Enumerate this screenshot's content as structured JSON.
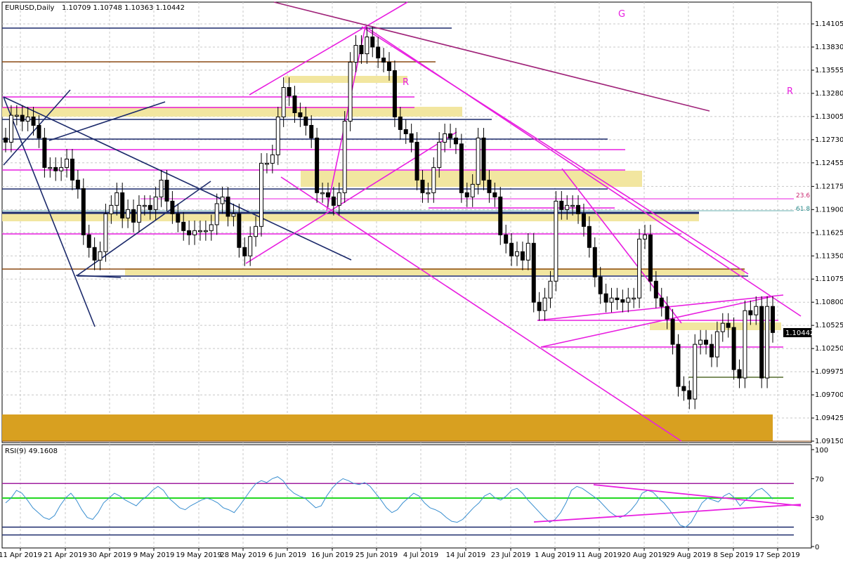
{
  "header": {
    "symbol": "EURUSD,Daily",
    "ohlc": "1.10709 1.10748 1.10363 1.10442"
  },
  "rsi_header": "RSI(9) 49.1608",
  "colors": {
    "grid": "#c8c8c8",
    "candle": "#000000",
    "magenta": "#e81ee0",
    "navy": "#1c2a6b",
    "brown": "#8b4a13",
    "purple_line": "#a0247a",
    "yellow_zone": "#f2e6a0",
    "gold_zone": "#d8a020",
    "rsi_line": "#3a8fd0",
    "rsi_green": "#22d822",
    "rsi_purple": "#a020a0"
  },
  "annotations": {
    "g": "G",
    "r1": "R",
    "r2": "R",
    "fib236": "23.6",
    "fib618": "61.8"
  },
  "chart_data": [
    {
      "type": "candlestick",
      "title": "EURUSD,Daily",
      "ylim": [
        1.0915,
        1.1425
      ],
      "y_ticks": [
        "1.14105",
        "1.13830",
        "1.13555",
        "1.13280",
        "1.13005",
        "1.12730",
        "1.12455",
        "1.12175",
        "1.11900",
        "1.11625",
        "1.11350",
        "1.11075",
        "1.10800",
        "1.10525",
        "1.10250",
        "1.09975",
        "1.09700",
        "1.09425",
        "1.09150"
      ],
      "x_ticks": [
        "11 Apr 2019",
        "21 Apr 2019",
        "30 Apr 2019",
        "9 May 2019",
        "19 May 2019",
        "28 May 2019",
        "6 Jun 2019",
        "16 Jun 2019",
        "25 Jun 2019",
        "4 Jul 2019",
        "14 Jul 2019",
        "23 Jul 2019",
        "1 Aug 2019",
        "11 Aug 2019",
        "20 Aug 2019",
        "29 Aug 2019",
        "8 Sep 2019",
        "17 Sep 2019"
      ],
      "current_price": "1.10442",
      "close_series": [
        1.127,
        1.1302,
        1.1302,
        1.1295,
        1.13,
        1.129,
        1.1275,
        1.124,
        1.124,
        1.1236,
        1.124,
        1.125,
        1.1225,
        1.1215,
        1.116,
        1.1145,
        1.113,
        1.114,
        1.1185,
        1.1195,
        1.121,
        1.118,
        1.119,
        1.1175,
        1.1195,
        1.1195,
        1.119,
        1.1205,
        1.1225,
        1.12,
        1.1185,
        1.1175,
        1.1165,
        1.116,
        1.1165,
        1.1165,
        1.1165,
        1.1172,
        1.1197,
        1.1205,
        1.1182,
        1.1185,
        1.1145,
        1.1135,
        1.1158,
        1.117,
        1.1245,
        1.1245,
        1.1255,
        1.13,
        1.1335,
        1.1325,
        1.1305,
        1.13,
        1.129,
        1.1275,
        1.121,
        1.121,
        1.1205,
        1.1195,
        1.121,
        1.1295,
        1.1365,
        1.1385,
        1.1375,
        1.1395,
        1.1383,
        1.137,
        1.1365,
        1.1355,
        1.13,
        1.1285,
        1.128,
        1.127,
        1.1225,
        1.121,
        1.121,
        1.124,
        1.127,
        1.128,
        1.1275,
        1.1268,
        1.121,
        1.1205,
        1.122,
        1.1275,
        1.1225,
        1.121,
        1.1205,
        1.116,
        1.115,
        1.1135,
        1.114,
        1.113,
        1.115,
        1.108,
        1.107,
        1.1085,
        1.1105,
        1.12,
        1.119,
        1.1195,
        1.1195,
        1.1185,
        1.117,
        1.1145,
        1.111,
        1.109,
        1.108,
        1.1085,
        1.1083,
        1.108,
        1.1085,
        1.1085,
        1.1155,
        1.116,
        1.1105,
        1.1085,
        1.1075,
        1.106,
        1.103,
        1.098,
        1.0975,
        1.0965,
        1.103,
        1.1035,
        1.103,
        1.1015,
        1.1045,
        1.1055,
        1.105,
        1.1,
        1.099,
        1.107,
        1.1065,
        1.1075,
        1.099,
        1.1075,
        1.1044
      ]
    },
    {
      "type": "line",
      "title": "RSI(9) 49.1608",
      "ylim": [
        0,
        100
      ],
      "y_ticks": [
        "100",
        "70",
        "30",
        "0"
      ],
      "levels": [
        65,
        50,
        20,
        12
      ],
      "series": [
        {
          "values": [
            45,
            50,
            58,
            55,
            48,
            40,
            35,
            30,
            28,
            32,
            42,
            50,
            55,
            48,
            38,
            30,
            28,
            35,
            45,
            50,
            55,
            52,
            48,
            45,
            42,
            48,
            52,
            58,
            62,
            58,
            50,
            45,
            40,
            38,
            42,
            45,
            48,
            50,
            48,
            45,
            40,
            38,
            35,
            42,
            50,
            58,
            65,
            68,
            66,
            70,
            72,
            68,
            60,
            55,
            52,
            50,
            45,
            40,
            42,
            52,
            60,
            66,
            70,
            68,
            65,
            64,
            66,
            62,
            55,
            48,
            40,
            35,
            38,
            45,
            50,
            55,
            52,
            45,
            40,
            38,
            35,
            30,
            26,
            25,
            28,
            34,
            40,
            45,
            52,
            55,
            50,
            48,
            52,
            58,
            60,
            55,
            48,
            42,
            36,
            30,
            25,
            28,
            35,
            45,
            58,
            62,
            60,
            56,
            52,
            48,
            42,
            36,
            32,
            30,
            33,
            38,
            45,
            55,
            58,
            56,
            50,
            45,
            38,
            30,
            22,
            20,
            25,
            35,
            45,
            50,
            48,
            46,
            52,
            55,
            50,
            42,
            48,
            52,
            58,
            60,
            55,
            49
          ]
        }
      ]
    }
  ]
}
